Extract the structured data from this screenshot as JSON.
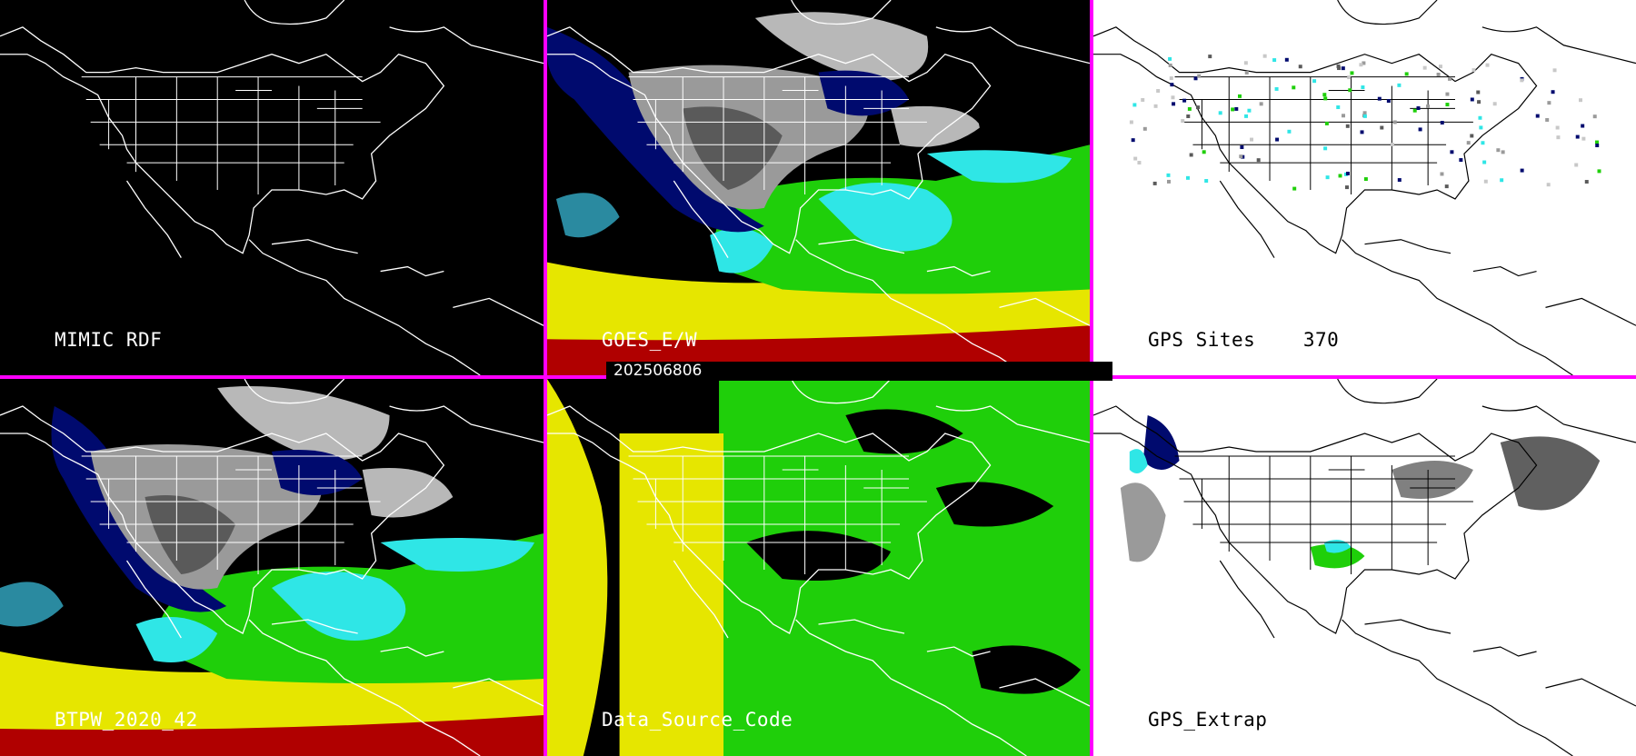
{
  "timestamp": "202506806",
  "panels": [
    {
      "id": "mimic",
      "label": "MIMIC RDF"
    },
    {
      "id": "goes",
      "label": "GOES_E/W"
    },
    {
      "id": "gps-sites",
      "label": "GPS Sites",
      "count": "370"
    },
    {
      "id": "bttpw",
      "label": "BTPW_2020_42"
    },
    {
      "id": "data-source",
      "label": "Data_Source_Code"
    },
    {
      "id": "gps-extrap",
      "label": "GPS_Extrap"
    }
  ],
  "colors": {
    "divider": "#ff00ff",
    "border_dark": "#ffffff",
    "border_light": "#000000",
    "bg_dark": "#000000",
    "bg_light": "#ffffff",
    "pw_navy": "#000a6e",
    "pw_cyan": "#2fe6e6",
    "pw_green": "#1fcf0a",
    "pw_yellow": "#e6e600",
    "pw_red": "#b00000",
    "pw_gray": "#9a9a9a"
  }
}
